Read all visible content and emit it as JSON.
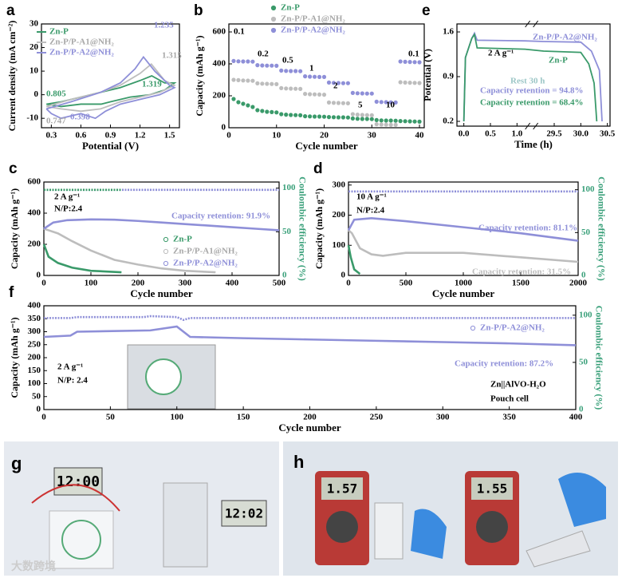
{
  "chart_data": [
    {
      "type": "line",
      "label": "a",
      "xlabel": "Potential (V)",
      "ylabel": "Current density (mA cm⁻²)",
      "xlim": [
        0.2,
        1.6
      ],
      "xticks": [
        0.3,
        0.6,
        0.9,
        1.2,
        1.5
      ],
      "ylim": [
        -14,
        30
      ],
      "yticks": [
        -10,
        0,
        10,
        20,
        30
      ],
      "series": [
        {
          "name": "Zn-P",
          "color": "#3a9a6a",
          "x": [
            0.25,
            0.4,
            0.6,
            0.8,
            1.0,
            1.2,
            1.319,
            1.45,
            1.55,
            1.45,
            1.3,
            1.1,
            0.9,
            0.805,
            0.6,
            0.4,
            0.25
          ],
          "values": [
            -4,
            -3,
            -1,
            1,
            3,
            6,
            8,
            5,
            5,
            2,
            0,
            -1,
            -3,
            -4,
            -4,
            -5,
            -4
          ]
        },
        {
          "name": "Zn-P/P-A1@NH₂",
          "color": "#bdbdbd",
          "x": [
            0.25,
            0.5,
            0.8,
            1.0,
            1.2,
            1.315,
            1.45,
            1.55,
            1.4,
            1.2,
            1.0,
            0.8,
            0.6,
            0.4,
            0.25
          ],
          "values": [
            -5,
            -2,
            1,
            4,
            9,
            13,
            6,
            4,
            1,
            -1,
            -3,
            -6,
            -7,
            -6,
            -5
          ]
        },
        {
          "name": "Zn-P/P-A2@NH₂",
          "color": "#8e8fd8",
          "x": [
            0.25,
            0.5,
            0.8,
            1.0,
            1.15,
            1.235,
            1.35,
            1.5,
            1.55,
            1.4,
            1.2,
            1.0,
            0.85,
            0.747,
            0.6,
            0.398,
            0.3,
            0.25
          ],
          "values": [
            -6,
            -3,
            1,
            5,
            11,
            16,
            10,
            4,
            3,
            0,
            -2,
            -4,
            -7,
            -10,
            -8,
            -10,
            -8,
            -6
          ]
        }
      ],
      "annotations": [
        {
          "text": "0.805",
          "color": "#3a9a6a"
        },
        {
          "text": "1.235",
          "color": "#8e8fd8"
        },
        {
          "text": "1.315",
          "color": "#a8a8a8"
        },
        {
          "text": "1.319",
          "color": "#3a9a6a"
        },
        {
          "text": "0.747",
          "color": "#a8a8a8"
        },
        {
          "text": "0.398",
          "color": "#8e8fd8"
        }
      ]
    },
    {
      "type": "scatter",
      "label": "b",
      "xlabel": "Cycle number",
      "ylabel": "Capacity (mAh g⁻¹)",
      "xlim": [
        0,
        41
      ],
      "xticks": [
        0,
        10,
        20,
        30,
        40
      ],
      "ylim": [
        0,
        650
      ],
      "yticks": [
        0,
        200,
        400,
        600
      ],
      "x": [
        1,
        2,
        3,
        4,
        5,
        6,
        7,
        8,
        9,
        10,
        11,
        12,
        13,
        14,
        15,
        16,
        17,
        18,
        19,
        20,
        21,
        22,
        23,
        24,
        25,
        26,
        27,
        28,
        29,
        30,
        31,
        32,
        33,
        34,
        35,
        36,
        37,
        38,
        39,
        40
      ],
      "series": [
        {
          "name": "Zn-P",
          "color": "#3a9a6a",
          "values": [
            180,
            160,
            150,
            140,
            130,
            110,
            105,
            100,
            98,
            96,
            85,
            82,
            80,
            79,
            78,
            72,
            71,
            70,
            70,
            69,
            67,
            66,
            65,
            65,
            64,
            58,
            56,
            55,
            55,
            54,
            48,
            46,
            45,
            45,
            44,
            42,
            41,
            40,
            39,
            38
          ]
        },
        {
          "name": "Zn-P/P-A1@NH₂",
          "color": "#bdbdbd",
          "values": [
            300,
            298,
            296,
            295,
            294,
            278,
            276,
            275,
            274,
            273,
            248,
            246,
            245,
            244,
            243,
            212,
            210,
            209,
            208,
            207,
            158,
            156,
            155,
            154,
            153,
            85,
            82,
            80,
            79,
            78,
            22,
            20,
            19,
            18,
            18,
            285,
            283,
            282,
            281,
            280
          ]
        },
        {
          "name": "Zn-P/P-A2@NH₂",
          "color": "#8e8fd8",
          "values": [
            418,
            416,
            415,
            415,
            414,
            392,
            390,
            389,
            389,
            388,
            358,
            356,
            355,
            355,
            354,
            322,
            320,
            319,
            318,
            318,
            283,
            281,
            280,
            279,
            279,
            218,
            216,
            215,
            214,
            214,
            163,
            161,
            160,
            159,
            158,
            415,
            413,
            412,
            411,
            410
          ]
        }
      ],
      "annotations": [
        {
          "text": "0.1",
          "color": "#000"
        },
        {
          "text": "0.2",
          "color": "#000"
        },
        {
          "text": "0.5",
          "color": "#000"
        },
        {
          "text": "1",
          "color": "#000"
        },
        {
          "text": "2",
          "color": "#000"
        },
        {
          "text": "5",
          "color": "#000"
        },
        {
          "text": "10",
          "color": "#000"
        },
        {
          "text": "0.1",
          "color": "#000"
        }
      ]
    },
    {
      "type": "line",
      "label": "e",
      "xlabel": "Time (h)",
      "ylabel": "Potential (V)",
      "xlim": [
        -0.13,
        30.55
      ],
      "xbreak": [
        1.2,
        29.15
      ],
      "xticks": [
        {
          "value": 0,
          "label": "0.0"
        },
        0.5,
        {
          "value": 1,
          "label": "1.0"
        },
        29.5,
        {
          "value": 30,
          "label": "30.0"
        },
        30.5
      ],
      "ylim": [
        0.125,
        1.725
      ],
      "yticks": [
        0.2,
        0.9,
        1.6
      ],
      "series": [
        {
          "color": "#8e8fd8",
          "x": [
            0,
            0.03,
            0.15,
            0.2,
            0.25,
            1.15,
            29.3,
            30.0,
            30.2,
            30.35,
            30.4
          ],
          "values": [
            0.2,
            1.2,
            1.5,
            1.58,
            1.47,
            1.46,
            1.45,
            1.44,
            1.3,
            1.0,
            0.2
          ]
        },
        {
          "color": "#3a9a6a",
          "x": [
            0,
            0.03,
            0.15,
            0.2,
            0.25,
            1.15,
            29.3,
            30.0,
            30.15,
            30.25,
            30.3
          ],
          "values": [
            0.2,
            1.2,
            1.5,
            1.56,
            1.35,
            1.33,
            1.3,
            1.28,
            1.1,
            0.8,
            0.2
          ]
        }
      ],
      "annotations": [
        {
          "text": "Zn-P/P-A2@NH₂",
          "color": "#8e8fd8"
        },
        {
          "text": "2 A g⁻¹",
          "color": "#000"
        },
        {
          "text": "Zn-P",
          "color": "#3a9a6a"
        },
        {
          "text": "Rest 30 h",
          "color": "#9cc6c6"
        },
        {
          "text": "Capacity retention = 94.8%",
          "color": "#8e8fd8"
        },
        {
          "text": "Capacity retention = 68.4%",
          "color": "#3a9a6a"
        }
      ]
    },
    {
      "type": "line",
      "label": "c",
      "marker": "o",
      "xlabel": "Cycle number",
      "ylabel": "Capacity (mAh g⁻¹)",
      "y2label": "Coulombic efficiency (%)",
      "xlim": [
        0,
        500
      ],
      "xticks": [
        0,
        100,
        200,
        300,
        400,
        500
      ],
      "ylim": [
        0,
        600
      ],
      "yticks": [
        0,
        200,
        400,
        600
      ],
      "y2lim": [
        0,
        107
      ],
      "y2ticks": [
        0,
        50,
        100
      ],
      "series": [
        {
          "name": "Zn-P",
          "color": "#3a9a6a",
          "x": [
            0,
            10,
            30,
            60,
            100,
            165
          ],
          "values": [
            200,
            120,
            80,
            50,
            30,
            20
          ]
        },
        {
          "name": "Zn-P/P-A1@NH₂",
          "color": "#bdbdbd",
          "x": [
            0,
            10,
            30,
            60,
            100,
            150,
            200,
            250,
            300,
            365
          ],
          "values": [
            300,
            290,
            270,
            220,
            160,
            100,
            70,
            45,
            30,
            20
          ]
        },
        {
          "name": "Zn-P/P-A2@NH₂",
          "color": "#8e8fd8",
          "x": [
            0,
            20,
            50,
            100,
            150,
            200,
            250,
            300,
            350,
            400,
            450,
            500
          ],
          "values": [
            300,
            340,
            355,
            360,
            358,
            350,
            340,
            330,
            320,
            310,
            300,
            290
          ]
        },
        {
          "color": "#8e8fd8",
          "axis": "y2",
          "x": [
            0,
            500
          ],
          "values": [
            98,
            98
          ]
        },
        {
          "color": "#3a9a6a",
          "axis": "y2",
          "x": [
            0,
            165
          ],
          "values": [
            98,
            98
          ]
        }
      ],
      "annotations": [
        {
          "text": "2 A g⁻¹",
          "color": "#000"
        },
        {
          "text": "N/P:2.4",
          "color": "#000"
        },
        {
          "text": "Capacity retention: 91.9%",
          "color": "#8e8fd8"
        }
      ]
    },
    {
      "type": "line",
      "label": "d",
      "marker": "o",
      "xlabel": "Cycle number",
      "ylabel": "Capacity (mAh g⁻¹)",
      "y2label": "Coulombic efficiency (%)",
      "xlim": [
        0,
        2000
      ],
      "xticks": [
        0,
        500,
        1000,
        1500,
        2000
      ],
      "ylim": [
        0,
        310
      ],
      "yticks": [
        0,
        100,
        200,
        300
      ],
      "y2lim": [
        0,
        109
      ],
      "y2ticks": [
        0,
        50,
        100
      ],
      "series": [
        {
          "color": "#3a9a6a",
          "x": [
            0,
            20,
            50,
            100
          ],
          "values": [
            100,
            60,
            20,
            5
          ]
        },
        {
          "color": "#bdbdbd",
          "x": [
            0,
            30,
            100,
            200,
            300,
            500,
            1000,
            1500,
            2000
          ],
          "values": [
            150,
            140,
            90,
            70,
            65,
            75,
            75,
            60,
            45
          ]
        },
        {
          "color": "#8e8fd8",
          "x": [
            0,
            50,
            200,
            500,
            1000,
            1500,
            2000
          ],
          "values": [
            150,
            185,
            190,
            180,
            160,
            140,
            115
          ]
        },
        {
          "color": "#8e8fd8",
          "axis": "y2",
          "x": [
            0,
            2000
          ],
          "values": [
            98,
            98
          ]
        }
      ],
      "annotations": [
        {
          "text": "10 A g⁻¹",
          "color": "#000"
        },
        {
          "text": "N/P:2.4",
          "color": "#000"
        },
        {
          "text": "Capacity retention: 81.1%",
          "color": "#8e8fd8"
        },
        {
          "text": "Capacity retention: 31.5%",
          "color": "#bdbdbd"
        }
      ]
    },
    {
      "type": "line",
      "label": "f",
      "marker": "o",
      "xlabel": "Cycle number",
      "ylabel": "Capacity (mAh g⁻¹)",
      "y2label": "Coulombic efficiency (%)",
      "xlim": [
        0,
        400
      ],
      "xticks": [
        0,
        50,
        100,
        150,
        200,
        250,
        300,
        350,
        400
      ],
      "ylim": [
        0,
        400
      ],
      "yticks": [
        0,
        50,
        100,
        150,
        200,
        250,
        300,
        350,
        400
      ],
      "y2lim": [
        0,
        110
      ],
      "y2ticks": [
        0,
        50,
        100
      ],
      "series": [
        {
          "name": "Zn-P/P-A2@NH₂",
          "color": "#8e8fd8",
          "x": [
            0,
            20,
            25,
            80,
            100,
            105,
            110,
            150,
            200,
            250,
            300,
            350,
            400
          ],
          "values": [
            280,
            285,
            300,
            305,
            320,
            300,
            280,
            275,
            270,
            265,
            260,
            255,
            248
          ]
        },
        {
          "color": "#8e8fd8",
          "axis": "y2",
          "x": [
            0,
            20,
            25,
            75,
            80,
            100,
            105,
            110,
            400
          ],
          "values": [
            97,
            97,
            98,
            98,
            99,
            98,
            95,
            97,
            97
          ]
        }
      ],
      "annotations": [
        {
          "text": "2 A g⁻¹",
          "color": "#000"
        },
        {
          "text": "N/P:  2.4",
          "color": "#000"
        },
        {
          "text": "Capacity retention: 87.2%",
          "color": "#8e8fd8"
        },
        {
          "text": "Zn||AlVO-H₂O",
          "color": "#000"
        },
        {
          "text": "Pouch cell",
          "color": "#000"
        }
      ]
    }
  ],
  "photos": [
    {
      "label": "g",
      "texts": [
        "12:00",
        "12:02"
      ]
    },
    {
      "label": "h",
      "texts": [
        "1.57",
        "1.55"
      ]
    }
  ],
  "watermark": "大数跨境"
}
